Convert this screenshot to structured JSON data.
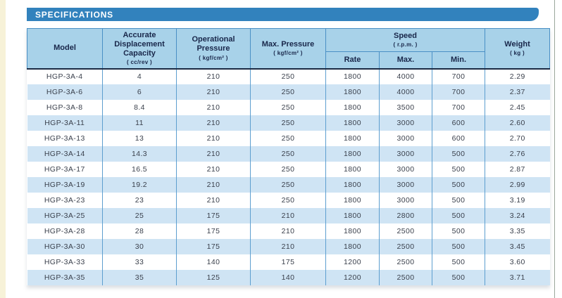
{
  "banner": {
    "title": "SPECIFICATIONS"
  },
  "colors": {
    "banner_blue": "#3282bd",
    "header_bg": "#a8d2e9",
    "row_stripe": "#cfe4f4",
    "column_rule": "#5d9ecf",
    "header_text": "#19274a",
    "body_text": "#3a404c",
    "page_edge_strip": "#f7f2d8"
  },
  "table": {
    "headers": {
      "model": {
        "label": "Model"
      },
      "displacement": {
        "label": "Accurate Displacement Capacity",
        "unit": "( cc/rev )"
      },
      "operational_pressure": {
        "label": "Operational Pressure",
        "unit": "( kgf/cm² )"
      },
      "max_pressure": {
        "label": "Max. Pressure",
        "unit": "( kgf/cm² )"
      },
      "speed": {
        "label": "Speed",
        "unit": "( r.p.m. )",
        "sub": [
          "Rate",
          "Max.",
          "Min."
        ]
      },
      "weight": {
        "label": "Weight",
        "unit": "( kg )"
      }
    },
    "rows": [
      {
        "model": "HGP-3A-4",
        "values": [
          "4",
          "210",
          "250",
          "1800",
          "4000",
          "700",
          "2.29"
        ]
      },
      {
        "model": "HGP-3A-6",
        "values": [
          "6",
          "210",
          "250",
          "1800",
          "4000",
          "700",
          "2.37"
        ]
      },
      {
        "model": "HGP-3A-8",
        "values": [
          "8.4",
          "210",
          "250",
          "1800",
          "3500",
          "700",
          "2.45"
        ]
      },
      {
        "model": "HGP-3A-11",
        "values": [
          "11",
          "210",
          "250",
          "1800",
          "3000",
          "600",
          "2.60"
        ]
      },
      {
        "model": "HGP-3A-13",
        "values": [
          "13",
          "210",
          "250",
          "1800",
          "3000",
          "600",
          "2.70"
        ]
      },
      {
        "model": "HGP-3A-14",
        "values": [
          "14.3",
          "210",
          "250",
          "1800",
          "3000",
          "500",
          "2.76"
        ]
      },
      {
        "model": "HGP-3A-17",
        "values": [
          "16.5",
          "210",
          "250",
          "1800",
          "3000",
          "500",
          "2.87"
        ]
      },
      {
        "model": "HGP-3A-19",
        "values": [
          "19.2",
          "210",
          "250",
          "1800",
          "3000",
          "500",
          "2.99"
        ]
      },
      {
        "model": "HGP-3A-23",
        "values": [
          "23",
          "210",
          "250",
          "1800",
          "3000",
          "500",
          "3.19"
        ]
      },
      {
        "model": "HGP-3A-25",
        "values": [
          "25",
          "175",
          "210",
          "1800",
          "2800",
          "500",
          "3.24"
        ]
      },
      {
        "model": "HGP-3A-28",
        "values": [
          "28",
          "175",
          "210",
          "1800",
          "2500",
          "500",
          "3.35"
        ]
      },
      {
        "model": "HGP-3A-30",
        "values": [
          "30",
          "175",
          "210",
          "1800",
          "2500",
          "500",
          "3.45"
        ]
      },
      {
        "model": "HGP-3A-33",
        "values": [
          "33",
          "140",
          "175",
          "1200",
          "2500",
          "500",
          "3.60"
        ]
      },
      {
        "model": "HGP-3A-35",
        "values": [
          "35",
          "125",
          "140",
          "1200",
          "2500",
          "500",
          "3.71"
        ]
      }
    ]
  },
  "chart_data": {
    "type": "table",
    "title": "SPECIFICATIONS",
    "columns": [
      "Model",
      "Accurate Displacement Capacity ( cc/rev )",
      "Operational Pressure ( kgf/cm² )",
      "Max. Pressure ( kgf/cm² )",
      "Speed Rate ( r.p.m. )",
      "Speed Max. ( r.p.m. )",
      "Speed Min. ( r.p.m. )",
      "Weight ( kg )"
    ],
    "rows": [
      [
        "HGP-3A-4",
        4,
        210,
        250,
        1800,
        4000,
        700,
        2.29
      ],
      [
        "HGP-3A-6",
        6,
        210,
        250,
        1800,
        4000,
        700,
        2.37
      ],
      [
        "HGP-3A-8",
        8.4,
        210,
        250,
        1800,
        3500,
        700,
        2.45
      ],
      [
        "HGP-3A-11",
        11,
        210,
        250,
        1800,
        3000,
        600,
        2.6
      ],
      [
        "HGP-3A-13",
        13,
        210,
        250,
        1800,
        3000,
        600,
        2.7
      ],
      [
        "HGP-3A-14",
        14.3,
        210,
        250,
        1800,
        3000,
        500,
        2.76
      ],
      [
        "HGP-3A-17",
        16.5,
        210,
        250,
        1800,
        3000,
        500,
        2.87
      ],
      [
        "HGP-3A-19",
        19.2,
        210,
        250,
        1800,
        3000,
        500,
        2.99
      ],
      [
        "HGP-3A-23",
        23,
        210,
        250,
        1800,
        3000,
        500,
        3.19
      ],
      [
        "HGP-3A-25",
        25,
        175,
        210,
        1800,
        2800,
        500,
        3.24
      ],
      [
        "HGP-3A-28",
        28,
        175,
        210,
        1800,
        2500,
        500,
        3.35
      ],
      [
        "HGP-3A-30",
        30,
        175,
        210,
        1800,
        2500,
        500,
        3.45
      ],
      [
        "HGP-3A-33",
        33,
        140,
        175,
        1200,
        2500,
        500,
        3.6
      ],
      [
        "HGP-3A-35",
        35,
        125,
        140,
        1200,
        2500,
        500,
        3.71
      ]
    ]
  }
}
